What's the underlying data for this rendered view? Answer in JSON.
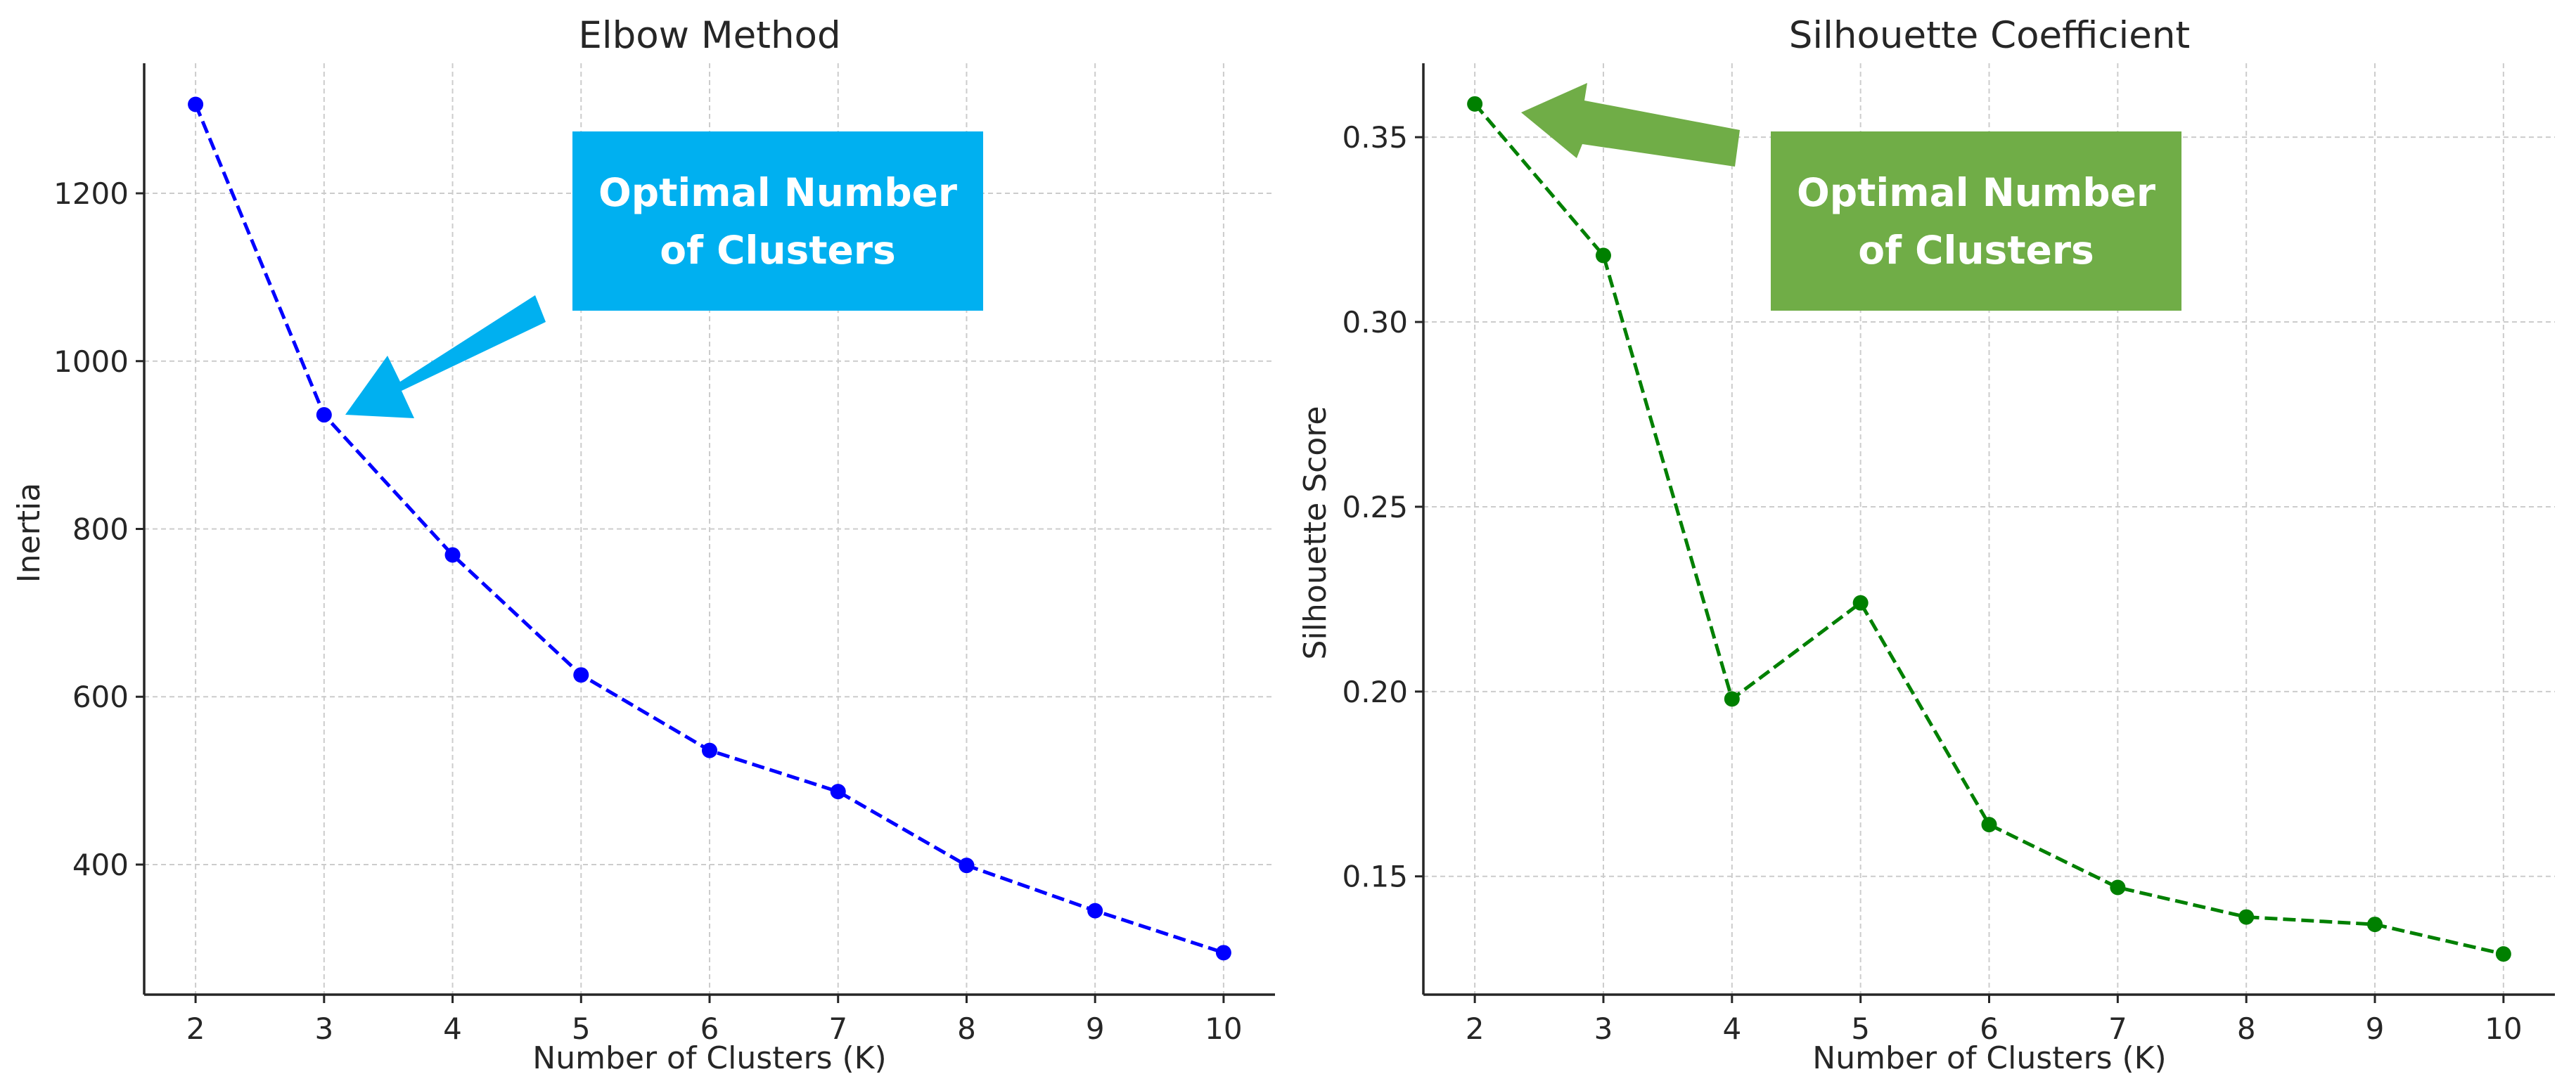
{
  "chart_data": [
    {
      "type": "line",
      "title": "Elbow Method",
      "xlabel": "Number of Clusters (K)",
      "ylabel": "Inertia",
      "x": [
        2,
        3,
        4,
        5,
        6,
        7,
        8,
        9,
        10
      ],
      "series": [
        {
          "name": "Inertia",
          "values": [
            1306,
            936,
            769,
            626,
            536,
            487,
            399,
            345,
            295
          ],
          "color": "#0000ff",
          "line_style": "dashed",
          "marker": "circle"
        }
      ],
      "xlim": [
        1.6,
        10.4
      ],
      "ylim": [
        245,
        1355
      ],
      "xticks": [
        2,
        3,
        4,
        5,
        6,
        7,
        8,
        9,
        10
      ],
      "yticks": [
        400,
        600,
        800,
        1000,
        1200
      ],
      "grid": true,
      "annotation": {
        "text_line1": "Optimal Number",
        "text_line2": "of Clusters",
        "box_color": "#00b0f0",
        "text_color": "#ffffff",
        "points_to_x": 3
      }
    },
    {
      "type": "line",
      "title": "Silhouette Coefficient",
      "xlabel": "Number of Clusters (K)",
      "ylabel": "Silhouette Score",
      "x": [
        2,
        3,
        4,
        5,
        6,
        7,
        8,
        9,
        10
      ],
      "series": [
        {
          "name": "Silhouette Score",
          "values": [
            0.359,
            0.318,
            0.198,
            0.224,
            0.164,
            0.147,
            0.139,
            0.137,
            0.129
          ],
          "color": "#008000",
          "line_style": "dashed",
          "marker": "circle"
        }
      ],
      "xlim": [
        1.6,
        10.4
      ],
      "ylim": [
        0.118,
        0.37
      ],
      "xticks": [
        2,
        3,
        4,
        5,
        6,
        7,
        8,
        9,
        10
      ],
      "yticks": [
        0.15,
        0.2,
        0.25,
        0.3,
        0.35
      ],
      "ytick_labels": [
        "0.15",
        "0.20",
        "0.25",
        "0.30",
        "0.35"
      ],
      "grid": true,
      "annotation": {
        "text_line1": "Optimal Number",
        "text_line2": "of Clusters",
        "box_color": "#70ad47",
        "text_color": "#ffffff",
        "points_to_x": 2
      }
    }
  ]
}
